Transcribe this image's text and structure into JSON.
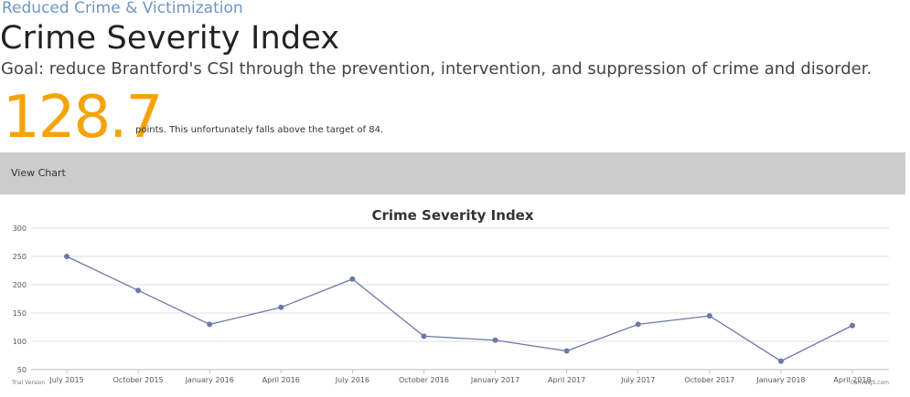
{
  "header": {
    "category": "Reduced Crime & Victimization",
    "title": "Crime Severity Index",
    "goal": "Goal: reduce Brantford's CSI through the prevention, intervention, and suppression of crime and disorder."
  },
  "metric": {
    "value": "128.7",
    "note": "points. This unfortunately falls above the target of 84."
  },
  "toggle": {
    "label": "View Chart"
  },
  "chart_data": {
    "type": "line",
    "title": "Crime Severity Index",
    "xlabel": "",
    "ylabel": "",
    "ylim": [
      50,
      300
    ],
    "yticks": [
      50,
      100,
      150,
      200,
      250,
      300
    ],
    "grid": true,
    "categories": [
      "July 2015",
      "October 2015",
      "January 2016",
      "April 2016",
      "July 2016",
      "October 2016",
      "January 2017",
      "April 2017",
      "July 2017",
      "October 2017",
      "January 2018",
      "April 2018"
    ],
    "series": [
      {
        "values": [
          250,
          190,
          130,
          160,
          210,
          109,
          102,
          83,
          130,
          145,
          65,
          128
        ]
      }
    ],
    "line_color": "#6d78a7",
    "grid_color": "#dddddd",
    "watermark_left": "Trial Version",
    "watermark_right": "CanvasJS.com"
  }
}
